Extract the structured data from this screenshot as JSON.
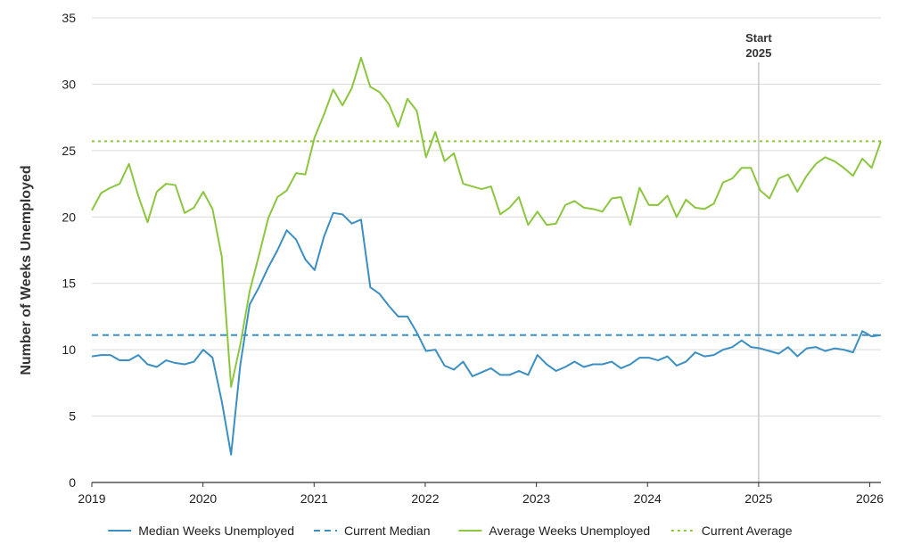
{
  "chart_data": {
    "type": "line",
    "ylabel": "Number of Weeks Unemployed",
    "xlabel": "",
    "ylim": [
      0,
      35
    ],
    "xlim": [
      2019,
      2026.1
    ],
    "y_ticks": [
      0,
      5,
      10,
      15,
      20,
      25,
      30,
      35
    ],
    "x_ticks": [
      "2019",
      "2020",
      "2021",
      "2022",
      "2023",
      "2024",
      "2025",
      "2026"
    ],
    "grid": "horizontal",
    "legend_position": "bottom",
    "annotation": {
      "line1": "Start",
      "line2": "2025",
      "x": 2025
    },
    "series": [
      {
        "name": "Median Weeks Unemployed",
        "color": "#3b8fc2",
        "style": "solid",
        "values": [
          9.5,
          9.6,
          9.6,
          9.2,
          9.2,
          9.6,
          8.9,
          8.7,
          9.2,
          9.0,
          8.9,
          9.1,
          10.0,
          9.4,
          6.1,
          2.1,
          8.9,
          13.4,
          14.7,
          16.2,
          17.5,
          19.0,
          18.3,
          16.8,
          16.0,
          18.5,
          20.3,
          20.2,
          19.5,
          19.8,
          14.7,
          14.2,
          13.3,
          12.5,
          12.5,
          11.3,
          9.9,
          10.0,
          8.8,
          8.5,
          9.1,
          8.0,
          8.3,
          8.6,
          8.1,
          8.1,
          8.4,
          8.1,
          9.6,
          8.9,
          8.4,
          8.7,
          9.1,
          8.7,
          8.9,
          8.9,
          9.1,
          8.6,
          8.9,
          9.4,
          9.4,
          9.2,
          9.5,
          8.8,
          9.1,
          9.8,
          9.5,
          9.6,
          10.0,
          10.2,
          10.7,
          10.2,
          10.1,
          9.9,
          9.7,
          10.2,
          9.5,
          10.1,
          10.2,
          9.9,
          10.1,
          10.0,
          9.8,
          11.4,
          11.0,
          11.1
        ]
      },
      {
        "name": "Current Median",
        "color": "#3b8fc2",
        "style": "dashed",
        "constant": 11.1
      },
      {
        "name": "Average Weeks Unemployed",
        "color": "#8cc63f",
        "style": "solid",
        "values": [
          20.5,
          21.8,
          22.2,
          22.5,
          24.0,
          21.6,
          19.6,
          21.9,
          22.5,
          22.4,
          20.3,
          20.7,
          21.9,
          20.6,
          17.0,
          7.2,
          10.4,
          14.4,
          17.1,
          19.9,
          21.5,
          22.0,
          23.3,
          23.2,
          26.0,
          27.7,
          29.6,
          28.4,
          29.7,
          32.0,
          29.8,
          29.4,
          28.5,
          26.8,
          28.9,
          28.0,
          24.5,
          26.4,
          24.2,
          24.8,
          22.5,
          22.3,
          22.1,
          22.3,
          20.2,
          20.7,
          21.5,
          19.4,
          20.4,
          19.4,
          19.5,
          20.9,
          21.2,
          20.7,
          20.6,
          20.4,
          21.4,
          21.5,
          19.4,
          22.2,
          20.9,
          20.9,
          21.6,
          20.0,
          21.3,
          20.7,
          20.6,
          21.0,
          22.6,
          22.9,
          23.7,
          23.7,
          22.0,
          21.4,
          22.9,
          23.2,
          21.9,
          23.1,
          24.0,
          24.5,
          24.2,
          23.7,
          23.1,
          24.4,
          23.7,
          25.7
        ]
      },
      {
        "name": "Current Average",
        "color": "#8cc63f",
        "style": "dotted",
        "constant": 25.7
      }
    ]
  }
}
